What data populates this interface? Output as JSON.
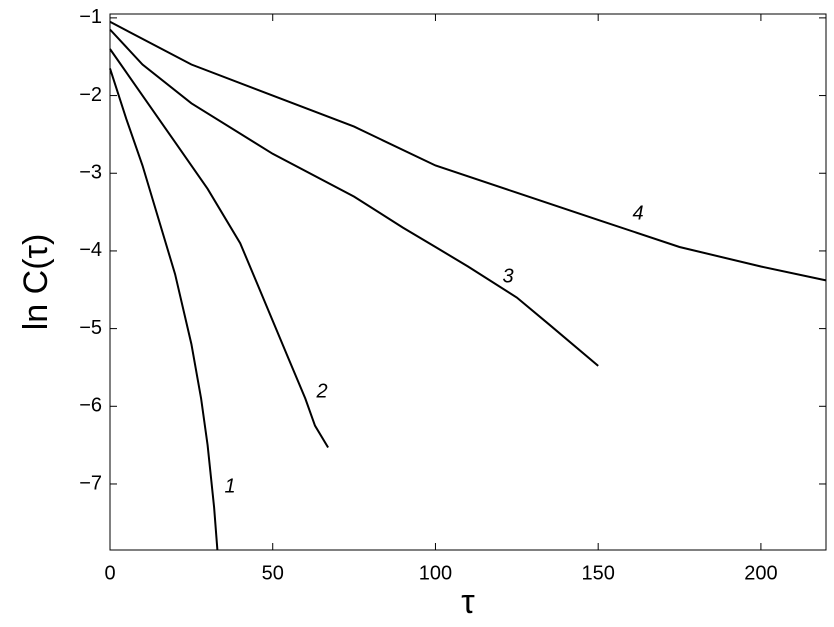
{
  "chart_data": {
    "type": "line",
    "xlabel": "τ",
    "ylabel": "ln C(τ)",
    "xlim": [
      0,
      220
    ],
    "ylim": [
      -7.85,
      -0.95
    ],
    "xticks": [
      0,
      50,
      100,
      150,
      200
    ],
    "yticks": [
      {
        "value": -7,
        "label": "−7"
      },
      {
        "value": -6,
        "label": "−6"
      },
      {
        "value": -5,
        "label": "−5"
      },
      {
        "value": -4,
        "label": "−4"
      },
      {
        "value": -3,
        "label": "−3"
      },
      {
        "value": -2,
        "label": "−2"
      },
      {
        "value": -1,
        "label": "−1"
      }
    ],
    "series": [
      {
        "name": "1",
        "color": "#000000",
        "x": [
          0,
          5,
          10,
          15,
          20,
          25,
          28,
          30,
          32,
          33
        ],
        "values": [
          -1.65,
          -2.3,
          -2.9,
          -3.6,
          -4.3,
          -5.2,
          -5.9,
          -6.5,
          -7.3,
          -7.85
        ]
      },
      {
        "name": "2",
        "color": "#000000",
        "x": [
          0,
          10,
          20,
          30,
          40,
          45,
          50,
          55,
          60,
          63,
          67
        ],
        "values": [
          -1.4,
          -2.0,
          -2.6,
          -3.2,
          -3.9,
          -4.4,
          -4.9,
          -5.4,
          -5.9,
          -6.25,
          -6.53
        ]
      },
      {
        "name": "3",
        "color": "#000000",
        "x": [
          0,
          10,
          25,
          50,
          75,
          90,
          100,
          110,
          125,
          135,
          150
        ],
        "values": [
          -1.15,
          -1.6,
          -2.1,
          -2.75,
          -3.3,
          -3.7,
          -3.95,
          -4.2,
          -4.6,
          -4.95,
          -5.48
        ]
      },
      {
        "name": "4",
        "color": "#000000",
        "x": [
          0,
          25,
          50,
          75,
          100,
          125,
          150,
          175,
          200,
          220
        ],
        "values": [
          -1.05,
          -1.6,
          -2.0,
          -2.4,
          -2.9,
          -3.25,
          -3.6,
          -3.95,
          -4.2,
          -4.38
        ]
      }
    ]
  }
}
